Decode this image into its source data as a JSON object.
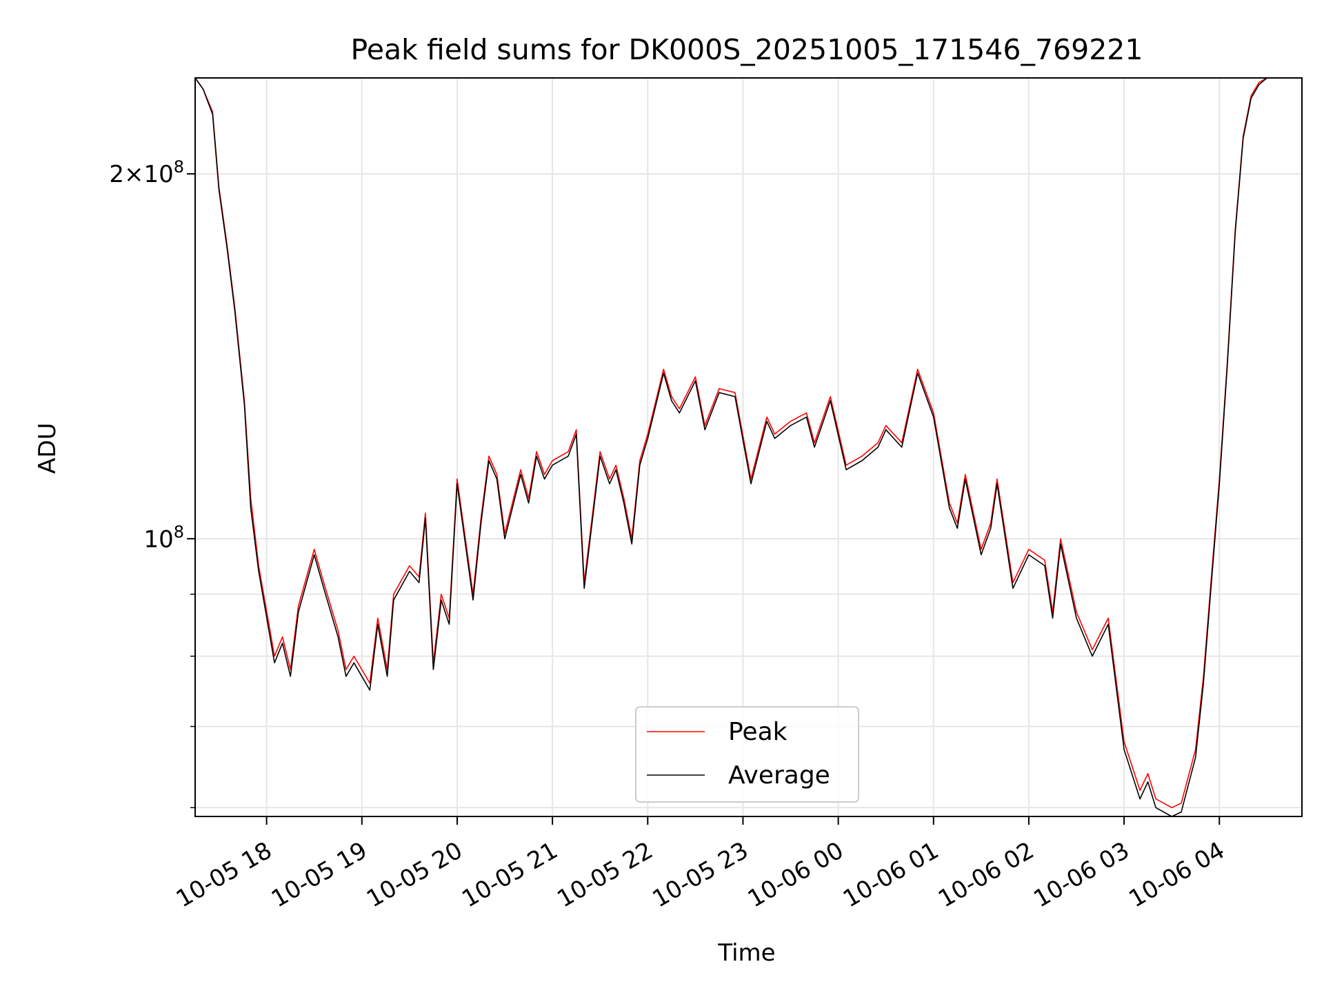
{
  "chart_data": {
    "type": "line",
    "title": "Peak field sums for DK000S_20251005_171546_769221",
    "xlabel": "Time",
    "ylabel": "ADU",
    "x_scale": "time",
    "y_scale": "log",
    "xlim": [
      "2025-10-05 17:15",
      "2025-10-06 04:52"
    ],
    "ylim": [
      59000000,
      240000000
    ],
    "grid": true,
    "legend_position": "bottom-center",
    "x_ticks": [
      "2025-10-05 18:00",
      "2025-10-05 19:00",
      "2025-10-05 20:00",
      "2025-10-05 21:00",
      "2025-10-05 22:00",
      "2025-10-05 23:00",
      "2025-10-06 00:00",
      "2025-10-06 01:00",
      "2025-10-06 02:00",
      "2025-10-06 03:00",
      "2025-10-06 04:00"
    ],
    "x_tick_labels": [
      "10-05 18",
      "10-05 19",
      "10-05 20",
      "10-05 21",
      "10-05 22",
      "10-05 23",
      "10-06 00",
      "10-06 01",
      "10-06 02",
      "10-06 03",
      "10-06 04"
    ],
    "y_major_ticks": [
      {
        "value": 100000000,
        "label_base": "10",
        "label_exp": "8"
      },
      {
        "value": 200000000,
        "label_base": "2×10",
        "label_exp": "8"
      }
    ],
    "y_minor_ticks": [
      60000000,
      70000000,
      80000000,
      90000000
    ],
    "series": [
      {
        "name": "Peak",
        "color": "#ff0000",
        "x": [
          "2025-10-05 17:15",
          "2025-10-05 17:20",
          "2025-10-05 17:26",
          "2025-10-05 17:30",
          "2025-10-05 17:35",
          "2025-10-05 17:40",
          "2025-10-05 17:46",
          "2025-10-05 17:50",
          "2025-10-05 17:55",
          "2025-10-05 18:05",
          "2025-10-05 18:10",
          "2025-10-05 18:15",
          "2025-10-05 18:20",
          "2025-10-05 18:30",
          "2025-10-05 18:36",
          "2025-10-05 18:45",
          "2025-10-05 18:50",
          "2025-10-05 18:55",
          "2025-10-05 19:05",
          "2025-10-05 19:10",
          "2025-10-05 19:16",
          "2025-10-05 19:20",
          "2025-10-05 19:30",
          "2025-10-05 19:36",
          "2025-10-05 19:40",
          "2025-10-05 19:45",
          "2025-10-05 19:50",
          "2025-10-05 19:55",
          "2025-10-05 20:00",
          "2025-10-05 20:10",
          "2025-10-05 20:15",
          "2025-10-05 20:20",
          "2025-10-05 20:25",
          "2025-10-05 20:30",
          "2025-10-05 20:40",
          "2025-10-05 20:45",
          "2025-10-05 20:50",
          "2025-10-05 20:55",
          "2025-10-05 21:00",
          "2025-10-05 21:10",
          "2025-10-05 21:15",
          "2025-10-05 21:20",
          "2025-10-05 21:30",
          "2025-10-05 21:36",
          "2025-10-05 21:40",
          "2025-10-05 21:45",
          "2025-10-05 21:50",
          "2025-10-05 21:55",
          "2025-10-05 22:00",
          "2025-10-05 22:10",
          "2025-10-05 22:15",
          "2025-10-05 22:20",
          "2025-10-05 22:30",
          "2025-10-05 22:36",
          "2025-10-05 22:45",
          "2025-10-05 22:55",
          "2025-10-05 23:05",
          "2025-10-05 23:15",
          "2025-10-05 23:20",
          "2025-10-05 23:30",
          "2025-10-05 23:40",
          "2025-10-05 23:45",
          "2025-10-05 23:55",
          "2025-10-06 00:05",
          "2025-10-06 00:15",
          "2025-10-06 00:25",
          "2025-10-06 00:30",
          "2025-10-06 00:40",
          "2025-10-06 00:50",
          "2025-10-06 01:00",
          "2025-10-06 01:10",
          "2025-10-06 01:15",
          "2025-10-06 01:20",
          "2025-10-06 01:30",
          "2025-10-06 01:36",
          "2025-10-06 01:40",
          "2025-10-06 01:50",
          "2025-10-06 02:00",
          "2025-10-06 02:10",
          "2025-10-06 02:15",
          "2025-10-06 02:20",
          "2025-10-06 02:30",
          "2025-10-06 02:40",
          "2025-10-06 02:50",
          "2025-10-06 03:00",
          "2025-10-06 03:10",
          "2025-10-06 03:15",
          "2025-10-06 03:20",
          "2025-10-06 03:30",
          "2025-10-06 03:36",
          "2025-10-06 03:45",
          "2025-10-06 03:50",
          "2025-10-06 03:55",
          "2025-10-06 04:00",
          "2025-10-06 04:05",
          "2025-10-06 04:10",
          "2025-10-06 04:15",
          "2025-10-06 04:20",
          "2025-10-06 04:25",
          "2025-10-06 04:30",
          "2025-10-06 04:35",
          "2025-10-06 04:40",
          "2025-10-06 04:45",
          "2025-10-06 04:52"
        ],
        "values": [
          240000000,
          235000000,
          225000000,
          195000000,
          175000000,
          155000000,
          130000000,
          108000000,
          95000000,
          80000000,
          83000000,
          78000000,
          88000000,
          98000000,
          92000000,
          84000000,
          78000000,
          80000000,
          76000000,
          86000000,
          78000000,
          90000000,
          95000000,
          93000000,
          105000000,
          79000000,
          90000000,
          86000000,
          112000000,
          90000000,
          104000000,
          117000000,
          113000000,
          101000000,
          114000000,
          108000000,
          118000000,
          113000000,
          116000000,
          118000000,
          123000000,
          92000000,
          118000000,
          112000000,
          115000000,
          108000000,
          100000000,
          116000000,
          122000000,
          138000000,
          131000000,
          128000000,
          136000000,
          124000000,
          133000000,
          132000000,
          112000000,
          126000000,
          122000000,
          125000000,
          127000000,
          120000000,
          131000000,
          115000000,
          117000000,
          120000000,
          124000000,
          120000000,
          138000000,
          127000000,
          107000000,
          103000000,
          113000000,
          98000000,
          103000000,
          112000000,
          92000000,
          98000000,
          96000000,
          87000000,
          100000000,
          87000000,
          81000000,
          86000000,
          68000000,
          62000000,
          64000000,
          61000000,
          60000000,
          60500000,
          67000000,
          77000000,
          93000000,
          112000000,
          140000000,
          180000000,
          215000000,
          232000000,
          238000000,
          240000000,
          240000000,
          240000000,
          240000000,
          240000000
        ]
      },
      {
        "name": "Average",
        "color": "#000000",
        "x": [
          "2025-10-05 17:15",
          "2025-10-05 17:20",
          "2025-10-05 17:26",
          "2025-10-05 17:30",
          "2025-10-05 17:35",
          "2025-10-05 17:40",
          "2025-10-05 17:46",
          "2025-10-05 17:50",
          "2025-10-05 17:55",
          "2025-10-05 18:05",
          "2025-10-05 18:10",
          "2025-10-05 18:15",
          "2025-10-05 18:20",
          "2025-10-05 18:30",
          "2025-10-05 18:36",
          "2025-10-05 18:45",
          "2025-10-05 18:50",
          "2025-10-05 18:55",
          "2025-10-05 19:05",
          "2025-10-05 19:10",
          "2025-10-05 19:16",
          "2025-10-05 19:20",
          "2025-10-05 19:30",
          "2025-10-05 19:36",
          "2025-10-05 19:40",
          "2025-10-05 19:45",
          "2025-10-05 19:50",
          "2025-10-05 19:55",
          "2025-10-05 20:00",
          "2025-10-05 20:10",
          "2025-10-05 20:15",
          "2025-10-05 20:20",
          "2025-10-05 20:25",
          "2025-10-05 20:30",
          "2025-10-05 20:40",
          "2025-10-05 20:45",
          "2025-10-05 20:50",
          "2025-10-05 20:55",
          "2025-10-05 21:00",
          "2025-10-05 21:10",
          "2025-10-05 21:15",
          "2025-10-05 21:20",
          "2025-10-05 21:30",
          "2025-10-05 21:36",
          "2025-10-05 21:40",
          "2025-10-05 21:45",
          "2025-10-05 21:50",
          "2025-10-05 21:55",
          "2025-10-05 22:00",
          "2025-10-05 22:10",
          "2025-10-05 22:15",
          "2025-10-05 22:20",
          "2025-10-05 22:30",
          "2025-10-05 22:36",
          "2025-10-05 22:45",
          "2025-10-05 22:55",
          "2025-10-05 23:05",
          "2025-10-05 23:15",
          "2025-10-05 23:20",
          "2025-10-05 23:30",
          "2025-10-05 23:40",
          "2025-10-05 23:45",
          "2025-10-05 23:55",
          "2025-10-06 00:05",
          "2025-10-06 00:15",
          "2025-10-06 00:25",
          "2025-10-06 00:30",
          "2025-10-06 00:40",
          "2025-10-06 00:50",
          "2025-10-06 01:00",
          "2025-10-06 01:10",
          "2025-10-06 01:15",
          "2025-10-06 01:20",
          "2025-10-06 01:30",
          "2025-10-06 01:36",
          "2025-10-06 01:40",
          "2025-10-06 01:50",
          "2025-10-06 02:00",
          "2025-10-06 02:10",
          "2025-10-06 02:15",
          "2025-10-06 02:20",
          "2025-10-06 02:30",
          "2025-10-06 02:40",
          "2025-10-06 02:50",
          "2025-10-06 03:00",
          "2025-10-06 03:10",
          "2025-10-06 03:15",
          "2025-10-06 03:20",
          "2025-10-06 03:30",
          "2025-10-06 03:36",
          "2025-10-06 03:45",
          "2025-10-06 03:50",
          "2025-10-06 03:55",
          "2025-10-06 04:00",
          "2025-10-06 04:05",
          "2025-10-06 04:10",
          "2025-10-06 04:15",
          "2025-10-06 04:20",
          "2025-10-06 04:25",
          "2025-10-06 04:30",
          "2025-10-06 04:35",
          "2025-10-06 04:40",
          "2025-10-06 04:45",
          "2025-10-06 04:52"
        ],
        "values": [
          240000000,
          235000000,
          224000000,
          194000000,
          174000000,
          154000000,
          129000000,
          106000000,
          94000000,
          79000000,
          82000000,
          77000000,
          87000000,
          97000000,
          91000000,
          83000000,
          77000000,
          79000000,
          75000000,
          85000000,
          77000000,
          89000000,
          94000000,
          92000000,
          104000000,
          78000000,
          89000000,
          85000000,
          111000000,
          89000000,
          103000000,
          116000000,
          112000000,
          100000000,
          113000000,
          107000000,
          117000000,
          112000000,
          115000000,
          117000000,
          122000000,
          91000000,
          117000000,
          111000000,
          114000000,
          107000000,
          99000000,
          115000000,
          121000000,
          137000000,
          130000000,
          127000000,
          135000000,
          123000000,
          132000000,
          131000000,
          111000000,
          125000000,
          121000000,
          124000000,
          126000000,
          119000000,
          130000000,
          114000000,
          116000000,
          119000000,
          123000000,
          119000000,
          137000000,
          126000000,
          106000000,
          102000000,
          112000000,
          97000000,
          102000000,
          111000000,
          91000000,
          97000000,
          95000000,
          86000000,
          99000000,
          86000000,
          80000000,
          85000000,
          67000000,
          61000000,
          63000000,
          60000000,
          59000000,
          59500000,
          66000000,
          76000000,
          92000000,
          111000000,
          139000000,
          179000000,
          214000000,
          231000000,
          237000000,
          240000000,
          240000000,
          240000000,
          240000000,
          240000000
        ]
      }
    ]
  }
}
